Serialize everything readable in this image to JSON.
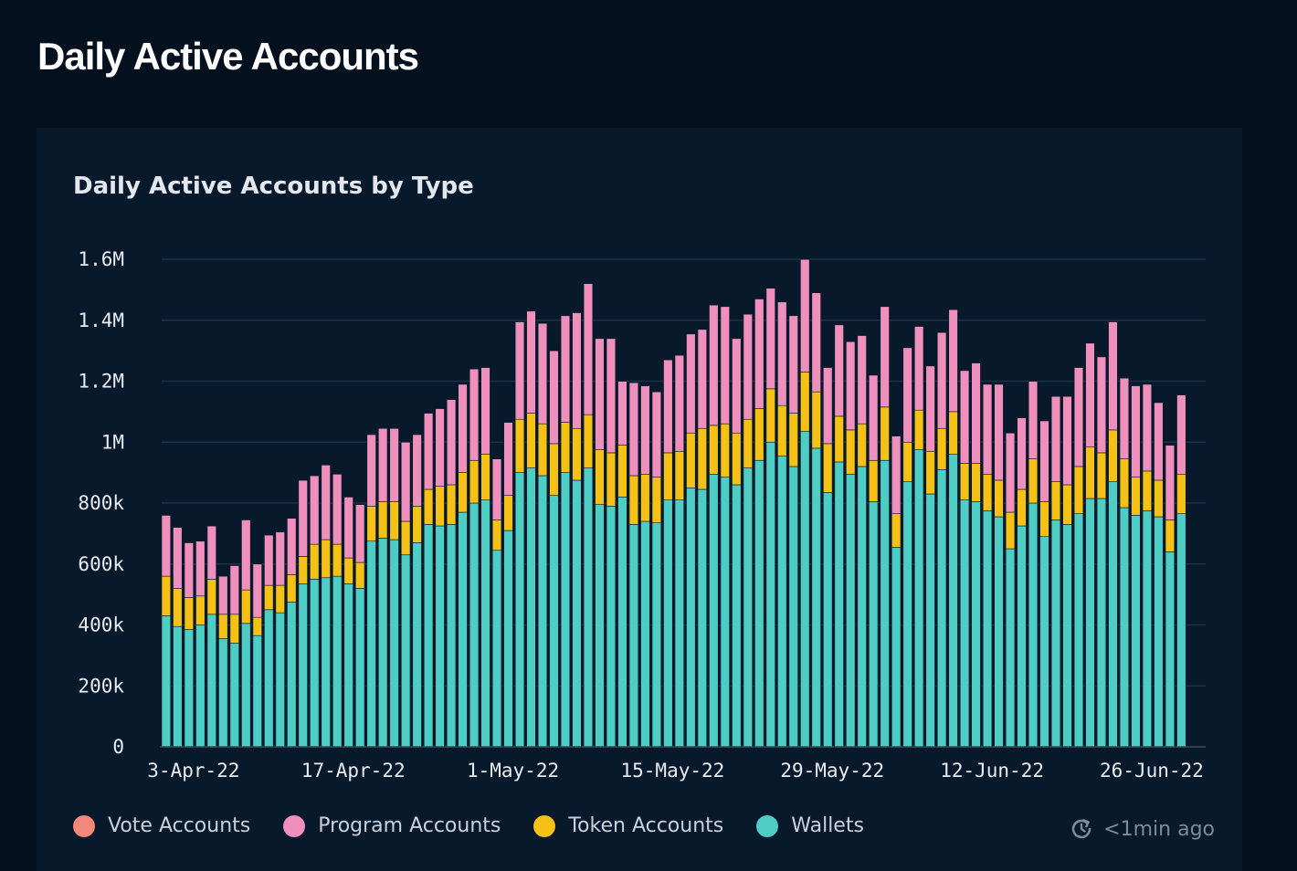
{
  "header": {
    "title": "Daily Active Accounts"
  },
  "card": {
    "title": "Daily Active Accounts by Type",
    "updated": "<1min ago"
  },
  "colors": {
    "background": "#03111f",
    "card": "#07192b",
    "wallets": "#4ecdc4",
    "token": "#f5c116",
    "program": "#ef8fbc",
    "vote": "#f4877b",
    "grid": "#1b3246"
  },
  "legend": [
    {
      "label": "Vote Accounts",
      "color": "#f4877b"
    },
    {
      "label": "Program Accounts",
      "color": "#ef8fbc"
    },
    {
      "label": "Token Accounts",
      "color": "#f5c116"
    },
    {
      "label": "Wallets",
      "color": "#4ecdc4"
    }
  ],
  "chart_data": {
    "type": "bar",
    "stacked": true,
    "title": "Daily Active Accounts by Type",
    "xlabel": "",
    "ylabel": "",
    "ylim": [
      0,
      1600000
    ],
    "y_ticks": [
      0,
      200000,
      400000,
      600000,
      800000,
      1000000,
      1200000,
      1400000,
      1600000
    ],
    "y_tick_labels": [
      "0",
      "200k",
      "400k",
      "600k",
      "800k",
      "1M",
      "1.2M",
      "1.4M",
      "1.6M"
    ],
    "x_tick_labels": [
      "3-Apr-22",
      "17-Apr-22",
      "1-May-22",
      "15-May-22",
      "29-May-22",
      "12-Jun-22",
      "26-Jun-22"
    ],
    "x_tick_indices": [
      0,
      14,
      28,
      42,
      56,
      70,
      84
    ],
    "start_date": "3-Apr-22",
    "num_days": 90,
    "grid": true,
    "legend_position": "bottom",
    "series": [
      {
        "name": "Wallets",
        "values": [
          430000,
          395000,
          385000,
          400000,
          435000,
          355000,
          340000,
          405000,
          365000,
          450000,
          440000,
          475000,
          535000,
          550000,
          555000,
          560000,
          535000,
          520000,
          675000,
          685000,
          680000,
          630000,
          670000,
          730000,
          725000,
          730000,
          770000,
          800000,
          810000,
          645000,
          710000,
          900000,
          915000,
          890000,
          825000,
          900000,
          875000,
          915000,
          795000,
          790000,
          820000,
          730000,
          740000,
          735000,
          810000,
          810000,
          850000,
          845000,
          895000,
          885000,
          860000,
          915000,
          940000,
          1000000,
          955000,
          920000,
          1035000,
          980000,
          835000,
          935000,
          895000,
          920000,
          805000,
          940000,
          655000,
          870000,
          975000,
          830000,
          910000,
          960000,
          810000,
          805000,
          775000,
          755000,
          650000,
          725000,
          800000,
          690000,
          745000,
          730000,
          765000,
          815000,
          815000,
          870000,
          785000,
          760000,
          775000,
          755000,
          640000,
          765000
        ]
      },
      {
        "name": "Token Accounts",
        "values": [
          130000,
          125000,
          105000,
          95000,
          115000,
          80000,
          95000,
          110000,
          60000,
          80000,
          90000,
          90000,
          90000,
          115000,
          125000,
          105000,
          85000,
          85000,
          115000,
          120000,
          125000,
          110000,
          120000,
          115000,
          130000,
          130000,
          130000,
          140000,
          150000,
          100000,
          115000,
          175000,
          180000,
          170000,
          170000,
          165000,
          170000,
          175000,
          180000,
          175000,
          170000,
          160000,
          155000,
          150000,
          155000,
          160000,
          180000,
          200000,
          160000,
          175000,
          170000,
          160000,
          170000,
          175000,
          165000,
          175000,
          195000,
          185000,
          160000,
          150000,
          145000,
          140000,
          135000,
          175000,
          110000,
          130000,
          130000,
          140000,
          135000,
          140000,
          120000,
          125000,
          120000,
          120000,
          120000,
          120000,
          145000,
          115000,
          125000,
          130000,
          155000,
          170000,
          150000,
          170000,
          160000,
          125000,
          130000,
          120000,
          105000,
          130000
        ]
      },
      {
        "name": "Program Accounts",
        "values": [
          200000,
          200000,
          180000,
          180000,
          175000,
          125000,
          160000,
          230000,
          175000,
          165000,
          175000,
          185000,
          250000,
          225000,
          245000,
          230000,
          200000,
          190000,
          235000,
          240000,
          240000,
          260000,
          235000,
          250000,
          255000,
          280000,
          290000,
          300000,
          285000,
          200000,
          240000,
          320000,
          335000,
          330000,
          305000,
          350000,
          380000,
          430000,
          365000,
          375000,
          210000,
          305000,
          290000,
          280000,
          305000,
          315000,
          325000,
          325000,
          395000,
          385000,
          310000,
          345000,
          360000,
          330000,
          340000,
          320000,
          370000,
          325000,
          250000,
          300000,
          290000,
          290000,
          280000,
          330000,
          255000,
          310000,
          275000,
          280000,
          315000,
          335000,
          305000,
          330000,
          295000,
          315000,
          260000,
          235000,
          255000,
          265000,
          280000,
          290000,
          325000,
          340000,
          315000,
          355000,
          265000,
          300000,
          285000,
          255000,
          245000,
          260000
        ]
      },
      {
        "name": "Vote Accounts",
        "values": [
          1000,
          1000,
          1000,
          1000,
          1000,
          1000,
          1000,
          1000,
          1000,
          1000,
          1000,
          1000,
          1000,
          1000,
          1000,
          1000,
          1000,
          1000,
          1000,
          1000,
          1000,
          1000,
          1000,
          1000,
          1000,
          1000,
          1000,
          1000,
          1000,
          1000,
          1000,
          1000,
          1000,
          1000,
          1000,
          1000,
          1000,
          1000,
          1000,
          1000,
          1000,
          1000,
          1000,
          1000,
          1000,
          1000,
          1000,
          1000,
          1000,
          1000,
          1000,
          1000,
          1000,
          1000,
          1000,
          1000,
          1000,
          1000,
          1000,
          1000,
          1000,
          1000,
          1000,
          1000,
          1000,
          1000,
          1000,
          1000,
          1000,
          1000,
          1000,
          1000,
          1000,
          1000,
          1000,
          1000,
          1000,
          1000,
          1000,
          1000,
          1000,
          1000,
          1000,
          1000,
          1000,
          1000,
          1000,
          1000,
          1000,
          1000
        ]
      }
    ]
  }
}
